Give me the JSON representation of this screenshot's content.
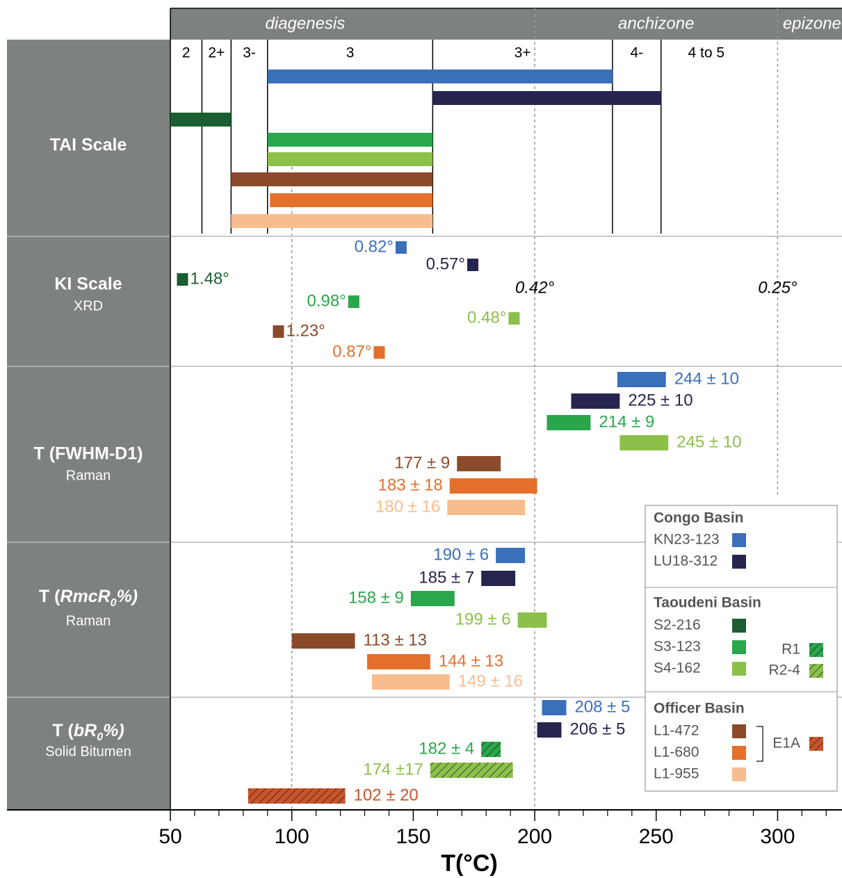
{
  "chart_data": {
    "type": "range",
    "xlabel": "T(°C)",
    "xlim": [
      50,
      326.5
    ],
    "xticks": [
      50,
      100,
      150,
      200,
      250,
      300
    ],
    "xminorticks": [
      60,
      70,
      80,
      90,
      110,
      120,
      130,
      140,
      160,
      170,
      180,
      190,
      210,
      220,
      230,
      240,
      260,
      270,
      280,
      290,
      310,
      320
    ],
    "zones": [
      {
        "label": "diagenesis",
        "from": 50,
        "to": 200
      },
      {
        "label": "anchizone",
        "from": 200,
        "to": 300
      },
      {
        "label": "epizone",
        "from": 300,
        "to": 326.5
      }
    ],
    "reference_lines": [
      {
        "x": 100
      },
      {
        "x": 200,
        "label": "0.42°"
      },
      {
        "x": 300,
        "label": "0.25°"
      }
    ],
    "tai_stages": {
      "labels": [
        "2",
        "2+",
        "3-",
        "3",
        "3+",
        "4-",
        "4 to 5"
      ],
      "boundaries": [
        63,
        75,
        90,
        158,
        232,
        252
      ]
    },
    "panels": {
      "tai": {
        "title": "TAI Scale"
      },
      "ki": {
        "title": "KI Scale",
        "subtitle": "XRD"
      },
      "fwhm": {
        "title": "T (FWHM-D1)",
        "subtitle": "Raman"
      },
      "rmc": {
        "title": [
          {
            "text": "T ("
          },
          {
            "text": "RmcR",
            "italic": true
          },
          {
            "text": "0",
            "italic": true,
            "sub": true
          },
          {
            "text": "%)",
            "italic": true
          }
        ],
        "subtitle": "Raman"
      },
      "br": {
        "title": [
          {
            "text": "T ("
          },
          {
            "text": "bR",
            "italic": true
          },
          {
            "text": "0",
            "italic": true,
            "sub": true
          },
          {
            "text": "%)",
            "italic": true
          }
        ],
        "subtitle": "Solid Bitumen"
      }
    },
    "groups": [
      {
        "name": "Congo Basin",
        "series": [
          {
            "name": "KN23-123",
            "color": "#3a6fba",
            "tai": [
              90,
              232
            ],
            "ki": {
              "x": 145,
              "value": 0.82,
              "label": "0.82°"
            },
            "fwhm": {
              "value": 244,
              "error": 10,
              "label": "244 ± 10"
            },
            "rmc": {
              "value": 190,
              "error": 6,
              "label": "190 ± 6"
            },
            "br": {
              "value": 208,
              "error": 5,
              "label": "208 ± 5"
            }
          },
          {
            "name": "LU18-312",
            "color": "#25254f",
            "tai": [
              158,
              252
            ],
            "ki": {
              "x": 174.5,
              "value": 0.57,
              "label": "0.57°"
            },
            "fwhm": {
              "value": 225,
              "error": 10,
              "label": "225 ± 10"
            },
            "rmc": {
              "value": 185,
              "error": 7,
              "label": "185 ± 7"
            },
            "br": {
              "value": 206,
              "error": 5,
              "label": "206 ± 5"
            }
          }
        ]
      },
      {
        "name": "Taoudeni Basin",
        "series": [
          {
            "name": "S2-216",
            "color": "#1b5e31",
            "tai": [
              50,
              75
            ],
            "ki": {
              "x": 55,
              "value": 1.48,
              "label": "1.48°"
            }
          },
          {
            "name": "S3-123",
            "color": "#2aa64b",
            "tai": [
              90,
              158
            ],
            "ki": {
              "x": 125.5,
              "value": 0.98,
              "label": "0.98°"
            },
            "fwhm": {
              "value": 214,
              "error": 9,
              "label": "214 ± 9"
            },
            "rmc": {
              "value": 158,
              "error": 9,
              "label": "158 ± 9"
            }
          },
          {
            "name": "S4-162",
            "color": "#8cc04b",
            "tai": [
              90,
              158
            ],
            "ki": {
              "x": 191.5,
              "value": 0.48,
              "label": "0.48°"
            },
            "fwhm": {
              "value": 245,
              "error": 10,
              "label": "245 ± 10"
            },
            "rmc": {
              "value": 199,
              "error": 6,
              "label": "199 ± 6"
            }
          },
          {
            "name": "R1",
            "color": "#2aa64b",
            "hatch": true,
            "br": {
              "value": 182,
              "error": 4,
              "label": "182 ± 4"
            }
          },
          {
            "name": "R2-4",
            "color": "#8cc04b",
            "hatch": true,
            "br": {
              "value": 174,
              "error": 17,
              "label": "174 ±17"
            }
          }
        ]
      },
      {
        "name": "Officer Basin",
        "series": [
          {
            "name": "L1-472",
            "color": "#8b4a2a",
            "tai": [
              75,
              158
            ],
            "ki": {
              "x": 94.5,
              "value": 1.23,
              "label": "1.23°"
            },
            "fwhm": {
              "value": 177,
              "error": 9,
              "label": "177 ± 9"
            },
            "rmc": {
              "value": 113,
              "error": 13,
              "label": "113 ± 13"
            }
          },
          {
            "name": "L1-680",
            "color": "#e4702c",
            "tai": [
              91,
              158
            ],
            "ki": {
              "x": 136,
              "value": 0.87,
              "label": "0.87°"
            },
            "fwhm": {
              "value": 183,
              "error": 18,
              "label": "183 ± 18"
            },
            "rmc": {
              "value": 144,
              "error": 13,
              "label": "144 ± 13"
            }
          },
          {
            "name": "L1-955",
            "color": "#f8bd8e",
            "tai": [
              75,
              158
            ],
            "fwhm": {
              "value": 180,
              "error": 16,
              "label": "180 ± 16"
            },
            "rmc": {
              "value": 149,
              "error": 16,
              "label": "149 ± 16"
            }
          },
          {
            "name": "E1A",
            "color": "#c9552b",
            "hatch": true,
            "br": {
              "value": 102,
              "error": 20,
              "label": "102 ± 20"
            }
          }
        ]
      }
    ]
  }
}
